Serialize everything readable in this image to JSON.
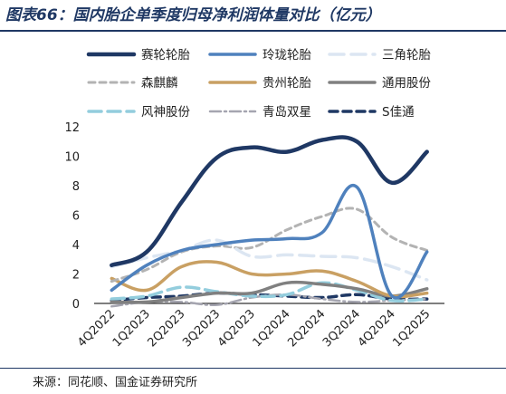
{
  "header": {
    "title": "图表66：国内胎企单季度归母净利润体量对比（亿元）"
  },
  "footer": {
    "source": "来源：同花顺、国金证券研究所"
  },
  "chart_data": {
    "type": "line",
    "title": "图表66：国内胎企单季度归母净利润体量对比（亿元）",
    "xlabel": "",
    "ylabel": "",
    "ylim": [
      0,
      12
    ],
    "yticks": [
      0,
      2,
      4,
      6,
      8,
      10,
      12
    ],
    "grid": false,
    "legend_position": "top",
    "categories": [
      "4Q2022",
      "1Q2023",
      "2Q2023",
      "3Q2023",
      "4Q2023",
      "1Q2024",
      "2Q2024",
      "3Q2024",
      "4Q2024",
      "1Q2025"
    ],
    "series": [
      {
        "name": "赛轮轮胎",
        "color": "#1f3864",
        "width": 4.5,
        "dash": "",
        "values": [
          2.6,
          3.5,
          6.9,
          9.9,
          10.6,
          10.3,
          11.1,
          11.0,
          8.2,
          10.3
        ]
      },
      {
        "name": "玲珑轮胎",
        "color": "#4f81bd",
        "width": 3.5,
        "dash": "",
        "values": [
          0.9,
          2.6,
          3.6,
          4.0,
          4.3,
          4.4,
          4.8,
          7.9,
          0.5,
          3.5
        ]
      },
      {
        "name": "三角轮胎",
        "color": "#dce6f2",
        "width": 3.5,
        "dash": "16,8",
        "values": [
          2.5,
          3.1,
          3.6,
          4.3,
          3.2,
          3.3,
          3.2,
          3.1,
          2.5,
          1.6
        ]
      },
      {
        "name": "森麒麟",
        "color": "#b3b3b3",
        "width": 3,
        "dash": "7,5",
        "values": [
          1.5,
          2.3,
          3.5,
          3.9,
          3.8,
          5.0,
          5.9,
          6.4,
          4.5,
          3.6
        ]
      },
      {
        "name": "贵州轮胎",
        "color": "#c9a063",
        "width": 3.5,
        "dash": "",
        "values": [
          1.7,
          0.9,
          2.5,
          2.8,
          2.0,
          2.0,
          2.2,
          1.5,
          0.5,
          0.7
        ]
      },
      {
        "name": "通用股份",
        "color": "#808080",
        "width": 3.5,
        "dash": "",
        "values": [
          0.1,
          0.1,
          0.4,
          0.7,
          0.7,
          1.4,
          1.3,
          1.0,
          0.5,
          1.0
        ]
      },
      {
        "name": "风神股份",
        "color": "#93cddd",
        "width": 3.5,
        "dash": "14,7",
        "values": [
          0.3,
          0.5,
          1.1,
          0.8,
          0.5,
          0.6,
          1.4,
          0.9,
          0.2,
          0.3
        ]
      },
      {
        "name": "青岛双星",
        "color": "#a5a5b0",
        "width": 2.5,
        "dash": "12,4,2,4",
        "values": [
          -0.2,
          0.1,
          0.1,
          -0.1,
          0.4,
          0.6,
          0.3,
          0.1,
          0.2,
          0.3
        ]
      },
      {
        "name": "S佳通",
        "color": "#1f3864",
        "width": 3.5,
        "dash": "9,6",
        "values": [
          0.2,
          0.4,
          0.5,
          0.7,
          0.6,
          0.5,
          0.4,
          0.6,
          0.3,
          0.3
        ]
      }
    ]
  }
}
